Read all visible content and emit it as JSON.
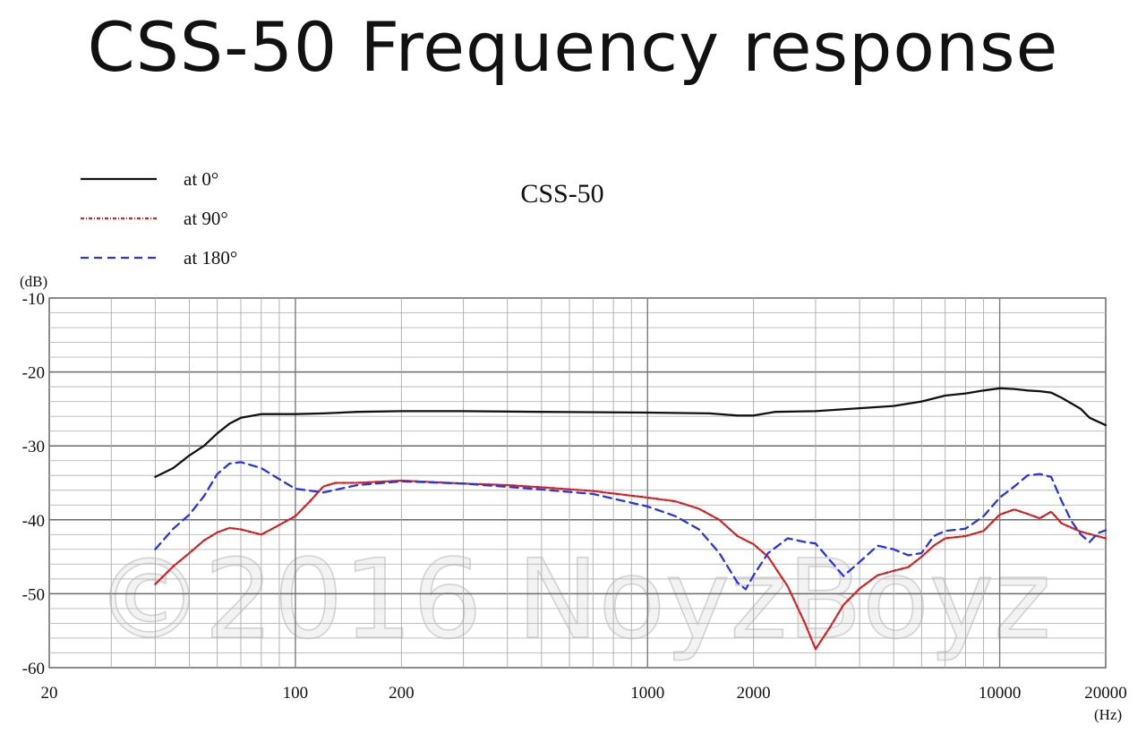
{
  "page": {
    "title": "CSS-50 Frequency response",
    "watermark": "©2016 NoyzBoyz"
  },
  "chart_data": {
    "type": "line",
    "title": "CSS-50",
    "ylabel": "(dB)",
    "xlabel": "(Hz)",
    "xscale": "log",
    "xlim": [
      20,
      20000
    ],
    "ylim": [
      -60,
      -10
    ],
    "x_ticks": [
      20,
      100,
      200,
      1000,
      2000,
      10000,
      20000
    ],
    "x_tick_labels": [
      "20",
      "100",
      "200",
      "1000",
      "2000",
      "10000",
      "20000"
    ],
    "y_ticks": [
      -10,
      -20,
      -30,
      -40,
      -50,
      -60
    ],
    "y_tick_labels": [
      "-10",
      "-20",
      "-30",
      "-40",
      "-50",
      "-60"
    ],
    "legend_position": "top-left",
    "series": [
      {
        "name": "at 0°",
        "color": "#111111",
        "dash": "solid",
        "points": [
          [
            40,
            -34.2
          ],
          [
            45,
            -33
          ],
          [
            50,
            -31.3
          ],
          [
            55,
            -30
          ],
          [
            60,
            -28.3
          ],
          [
            65,
            -27
          ],
          [
            70,
            -26.2
          ],
          [
            80,
            -25.7
          ],
          [
            100,
            -25.7
          ],
          [
            120,
            -25.6
          ],
          [
            150,
            -25.4
          ],
          [
            200,
            -25.3
          ],
          [
            300,
            -25.3
          ],
          [
            500,
            -25.4
          ],
          [
            1000,
            -25.5
          ],
          [
            1500,
            -25.6
          ],
          [
            1800,
            -25.9
          ],
          [
            2000,
            -25.9
          ],
          [
            2300,
            -25.4
          ],
          [
            3000,
            -25.3
          ],
          [
            4000,
            -24.9
          ],
          [
            5000,
            -24.6
          ],
          [
            6000,
            -24
          ],
          [
            7000,
            -23.2
          ],
          [
            8000,
            -22.9
          ],
          [
            9000,
            -22.5
          ],
          [
            10000,
            -22.2
          ],
          [
            11000,
            -22.3
          ],
          [
            12000,
            -22.5
          ],
          [
            13000,
            -22.6
          ],
          [
            14000,
            -22.8
          ],
          [
            15000,
            -23.5
          ],
          [
            17000,
            -25
          ],
          [
            18000,
            -26.2
          ],
          [
            20000,
            -27.2
          ]
        ]
      },
      {
        "name": "at 90°",
        "color": "#d42020",
        "dash": "dashdot",
        "points": [
          [
            40,
            -48.7
          ],
          [
            45,
            -46.3
          ],
          [
            50,
            -44.5
          ],
          [
            55,
            -42.8
          ],
          [
            60,
            -41.7
          ],
          [
            65,
            -41.1
          ],
          [
            70,
            -41.3
          ],
          [
            80,
            -42
          ],
          [
            90,
            -40.7
          ],
          [
            100,
            -39.5
          ],
          [
            110,
            -37.5
          ],
          [
            120,
            -35.5
          ],
          [
            130,
            -35
          ],
          [
            150,
            -35
          ],
          [
            200,
            -34.7
          ],
          [
            300,
            -35.1
          ],
          [
            400,
            -35.3
          ],
          [
            500,
            -35.6
          ],
          [
            700,
            -36.1
          ],
          [
            1000,
            -37
          ],
          [
            1200,
            -37.5
          ],
          [
            1400,
            -38.5
          ],
          [
            1600,
            -40
          ],
          [
            1800,
            -42.2
          ],
          [
            2000,
            -43.3
          ],
          [
            2200,
            -45
          ],
          [
            2500,
            -49
          ],
          [
            2800,
            -54
          ],
          [
            3000,
            -57.5
          ],
          [
            3300,
            -54.5
          ],
          [
            3600,
            -51.5
          ],
          [
            4000,
            -49.3
          ],
          [
            4500,
            -47.5
          ],
          [
            5000,
            -46.9
          ],
          [
            5500,
            -46.4
          ],
          [
            6000,
            -45
          ],
          [
            6500,
            -43.5
          ],
          [
            7000,
            -42.5
          ],
          [
            8000,
            -42.2
          ],
          [
            9000,
            -41.5
          ],
          [
            10000,
            -39.3
          ],
          [
            11000,
            -38.6
          ],
          [
            12000,
            -39.2
          ],
          [
            13000,
            -39.8
          ],
          [
            14000,
            -38.9
          ],
          [
            15000,
            -40.5
          ],
          [
            17000,
            -41.6
          ],
          [
            20000,
            -42.5
          ]
        ]
      },
      {
        "name": "at 180°",
        "color": "#2a35e0",
        "dash": "dashed",
        "points": [
          [
            40,
            -44
          ],
          [
            45,
            -41.2
          ],
          [
            50,
            -39.3
          ],
          [
            55,
            -36.8
          ],
          [
            60,
            -33.8
          ],
          [
            65,
            -32.4
          ],
          [
            70,
            -32.2
          ],
          [
            80,
            -33
          ],
          [
            90,
            -34.5
          ],
          [
            100,
            -35.8
          ],
          [
            120,
            -36.3
          ],
          [
            150,
            -35.3
          ],
          [
            200,
            -34.8
          ],
          [
            300,
            -35.1
          ],
          [
            500,
            -35.9
          ],
          [
            700,
            -36.5
          ],
          [
            1000,
            -38.2
          ],
          [
            1200,
            -39.5
          ],
          [
            1400,
            -41.3
          ],
          [
            1600,
            -44.5
          ],
          [
            1800,
            -48.5
          ],
          [
            1900,
            -49.4
          ],
          [
            2000,
            -47.5
          ],
          [
            2200,
            -44.5
          ],
          [
            2500,
            -42.5
          ],
          [
            2800,
            -43
          ],
          [
            3000,
            -43.2
          ],
          [
            3300,
            -45.5
          ],
          [
            3600,
            -47.6
          ],
          [
            4000,
            -45.7
          ],
          [
            4500,
            -43.5
          ],
          [
            5000,
            -44
          ],
          [
            5500,
            -44.8
          ],
          [
            6000,
            -44.5
          ],
          [
            6500,
            -42.2
          ],
          [
            7000,
            -41.5
          ],
          [
            8000,
            -41.2
          ],
          [
            9000,
            -39.5
          ],
          [
            10000,
            -37
          ],
          [
            11000,
            -35.5
          ],
          [
            12000,
            -34
          ],
          [
            13000,
            -33.8
          ],
          [
            14000,
            -34.2
          ],
          [
            15000,
            -37.5
          ],
          [
            16000,
            -40.2
          ],
          [
            17000,
            -42
          ],
          [
            18000,
            -43
          ],
          [
            19000,
            -41.8
          ],
          [
            20000,
            -41.4
          ]
        ]
      }
    ]
  }
}
